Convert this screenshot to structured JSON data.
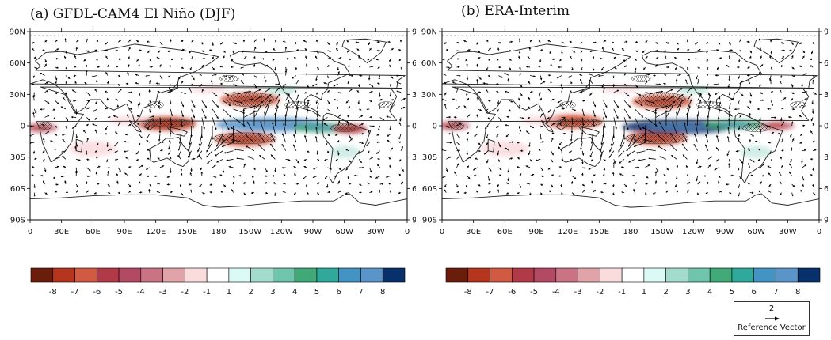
{
  "panels": [
    {
      "id": "a",
      "title": "(a) GFDL-CAM4 El Niño (DJF)"
    },
    {
      "id": "b",
      "title": "(b) ERA-Interim"
    }
  ],
  "reference_vector": {
    "value": "2",
    "label": "Reference Vector"
  },
  "colors": {
    "levels": [
      "#6b1d0c",
      "#b5351f",
      "#d25a43",
      "#b23a48",
      "#b24a64",
      "#c97385",
      "#dfa3a8",
      "#fbdcdc",
      "#ffffff",
      "#dcfaf5",
      "#a3dccd",
      "#6fc5ab",
      "#41a877",
      "#2fa99a",
      "#4393c3",
      "#5b94c9",
      "#08306b"
    ],
    "land_line": "#222222"
  },
  "chart_data": [
    {
      "type": "heatmap",
      "title": "(a) GFDL-CAM4 El Niño (DJF)",
      "x_ticks": [
        "0",
        "30E",
        "60E",
        "90E",
        "120E",
        "150E",
        "180",
        "150W",
        "120W",
        "90W",
        "60W",
        "30W",
        "0"
      ],
      "y_ticks": [
        "90N",
        "60N",
        "30N",
        "0",
        "30S",
        "60S",
        "90S"
      ],
      "colorbar_labels": [
        "-8",
        "-7",
        "-6",
        "-5",
        "-4",
        "-3",
        "-2",
        "-1",
        "1",
        "2",
        "3",
        "4",
        "5",
        "6",
        "7",
        "8"
      ],
      "features": [
        {
          "kind": "negative",
          "lon": 130,
          "lat": 2,
          "value": -7
        },
        {
          "kind": "negative",
          "lon": 205,
          "lat": -13,
          "value": -6
        },
        {
          "kind": "negative",
          "lon": 210,
          "lat": 25,
          "value": -6
        },
        {
          "kind": "positive",
          "lon": 230,
          "lat": 1,
          "value": 7
        },
        {
          "kind": "positive",
          "lon": 280,
          "lat": -2,
          "value": 4
        },
        {
          "kind": "negative",
          "lon": 305,
          "lat": -3,
          "value": -5
        },
        {
          "kind": "negative",
          "lon": 10,
          "lat": -2,
          "value": -3
        }
      ]
    },
    {
      "type": "heatmap",
      "title": "(b) ERA-Interim",
      "x_ticks": [
        "0",
        "30E",
        "60E",
        "90E",
        "120E",
        "150E",
        "180",
        "150W",
        "120W",
        "90W",
        "60W",
        "30W",
        "0"
      ],
      "y_ticks": [
        "90N",
        "60N",
        "30N",
        "0",
        "30S",
        "60S",
        "90S"
      ],
      "colorbar_labels": [
        "-8",
        "-7",
        "-6",
        "-5",
        "-4",
        "-3",
        "-2",
        "-1",
        "1",
        "2",
        "3",
        "4",
        "5",
        "6",
        "7",
        "8"
      ],
      "features": [
        {
          "kind": "negative",
          "lon": 125,
          "lat": 4,
          "value": -6
        },
        {
          "kind": "negative",
          "lon": 205,
          "lat": -12,
          "value": -6
        },
        {
          "kind": "negative",
          "lon": 210,
          "lat": 23,
          "value": -6
        },
        {
          "kind": "positive",
          "lon": 225,
          "lat": -1,
          "value": 8
        },
        {
          "kind": "positive",
          "lon": 280,
          "lat": 1,
          "value": 4
        },
        {
          "kind": "negative",
          "lon": 320,
          "lat": 0,
          "value": -3
        },
        {
          "kind": "negative",
          "lon": 10,
          "lat": 0,
          "value": -3
        }
      ]
    }
  ]
}
